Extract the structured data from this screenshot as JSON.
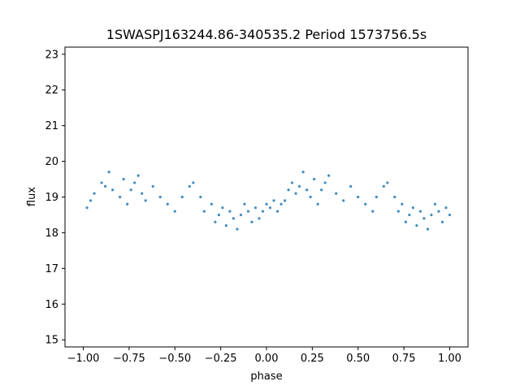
{
  "chart_data": {
    "type": "scatter",
    "title": "1SWASPJ163244.86-340535.2 Period 1573756.5s",
    "xlabel": "phase",
    "ylabel": "flux",
    "xlim": [
      -1.1,
      1.1
    ],
    "ylim": [
      14.8,
      23.2
    ],
    "xticks": [
      -1.0,
      -0.75,
      -0.5,
      -0.25,
      0.0,
      0.25,
      0.5,
      0.75,
      1.0
    ],
    "xtick_labels": [
      "−1.00",
      "−0.75",
      "−0.50",
      "−0.25",
      "0.00",
      "0.25",
      "0.50",
      "0.75",
      "1.00"
    ],
    "yticks": [
      15,
      16,
      17,
      18,
      19,
      20,
      21,
      22,
      23
    ],
    "ytick_labels": [
      "15",
      "16",
      "17",
      "18",
      "19",
      "20",
      "21",
      "22",
      "23"
    ],
    "grid": false,
    "legend": "none",
    "marker_color": "#1f77b4",
    "series": [
      {
        "x": [
          -0.98,
          -0.96,
          -0.94,
          -0.9,
          -0.88,
          -0.86,
          -0.84,
          -0.8,
          -0.78,
          -0.76,
          -0.74,
          -0.72,
          -0.7,
          -0.68,
          -0.66,
          -0.62,
          -0.58,
          -0.54,
          -0.5,
          -0.46,
          -0.42,
          -0.4,
          -0.36,
          -0.34,
          -0.3,
          -0.28,
          -0.26,
          -0.24,
          -0.22,
          -0.2,
          -0.18,
          -0.16,
          -0.14,
          -0.12,
          -0.1,
          -0.08,
          -0.06,
          -0.04,
          -0.02,
          0.0,
          0.02,
          0.04,
          0.06,
          0.08,
          0.1,
          0.12,
          0.14,
          0.16,
          0.18,
          0.2,
          0.22,
          0.24,
          0.26,
          0.28,
          0.3,
          0.32,
          0.34,
          0.38,
          0.42,
          0.46,
          0.5,
          0.54,
          0.58,
          0.6,
          0.64,
          0.66,
          0.7,
          0.72,
          0.74,
          0.76,
          0.78,
          0.8,
          0.82,
          0.84,
          0.86,
          0.88,
          0.9,
          0.92,
          0.94,
          0.96,
          0.98,
          1.0
        ],
        "y": [
          18.7,
          18.9,
          19.1,
          19.4,
          19.3,
          19.7,
          19.2,
          19.0,
          19.5,
          18.8,
          19.2,
          19.4,
          19.6,
          19.1,
          18.9,
          19.3,
          19.0,
          18.8,
          18.6,
          19.0,
          19.3,
          19.4,
          19.0,
          18.6,
          18.8,
          18.3,
          18.5,
          18.7,
          18.2,
          18.6,
          18.4,
          18.1,
          18.5,
          18.8,
          18.6,
          18.3,
          18.7,
          18.4,
          18.6,
          18.8,
          18.7,
          18.9,
          18.6,
          18.8,
          18.9,
          19.2,
          19.4,
          19.1,
          19.3,
          19.7,
          19.2,
          19.0,
          19.5,
          18.8,
          19.2,
          19.4,
          19.6,
          19.1,
          18.9,
          19.3,
          19.0,
          18.8,
          18.6,
          19.0,
          19.3,
          19.4,
          19.0,
          18.6,
          18.8,
          18.3,
          18.5,
          18.7,
          18.2,
          18.6,
          18.4,
          18.1,
          18.5,
          18.8,
          18.6,
          18.3,
          18.7,
          18.5
        ]
      }
    ]
  }
}
